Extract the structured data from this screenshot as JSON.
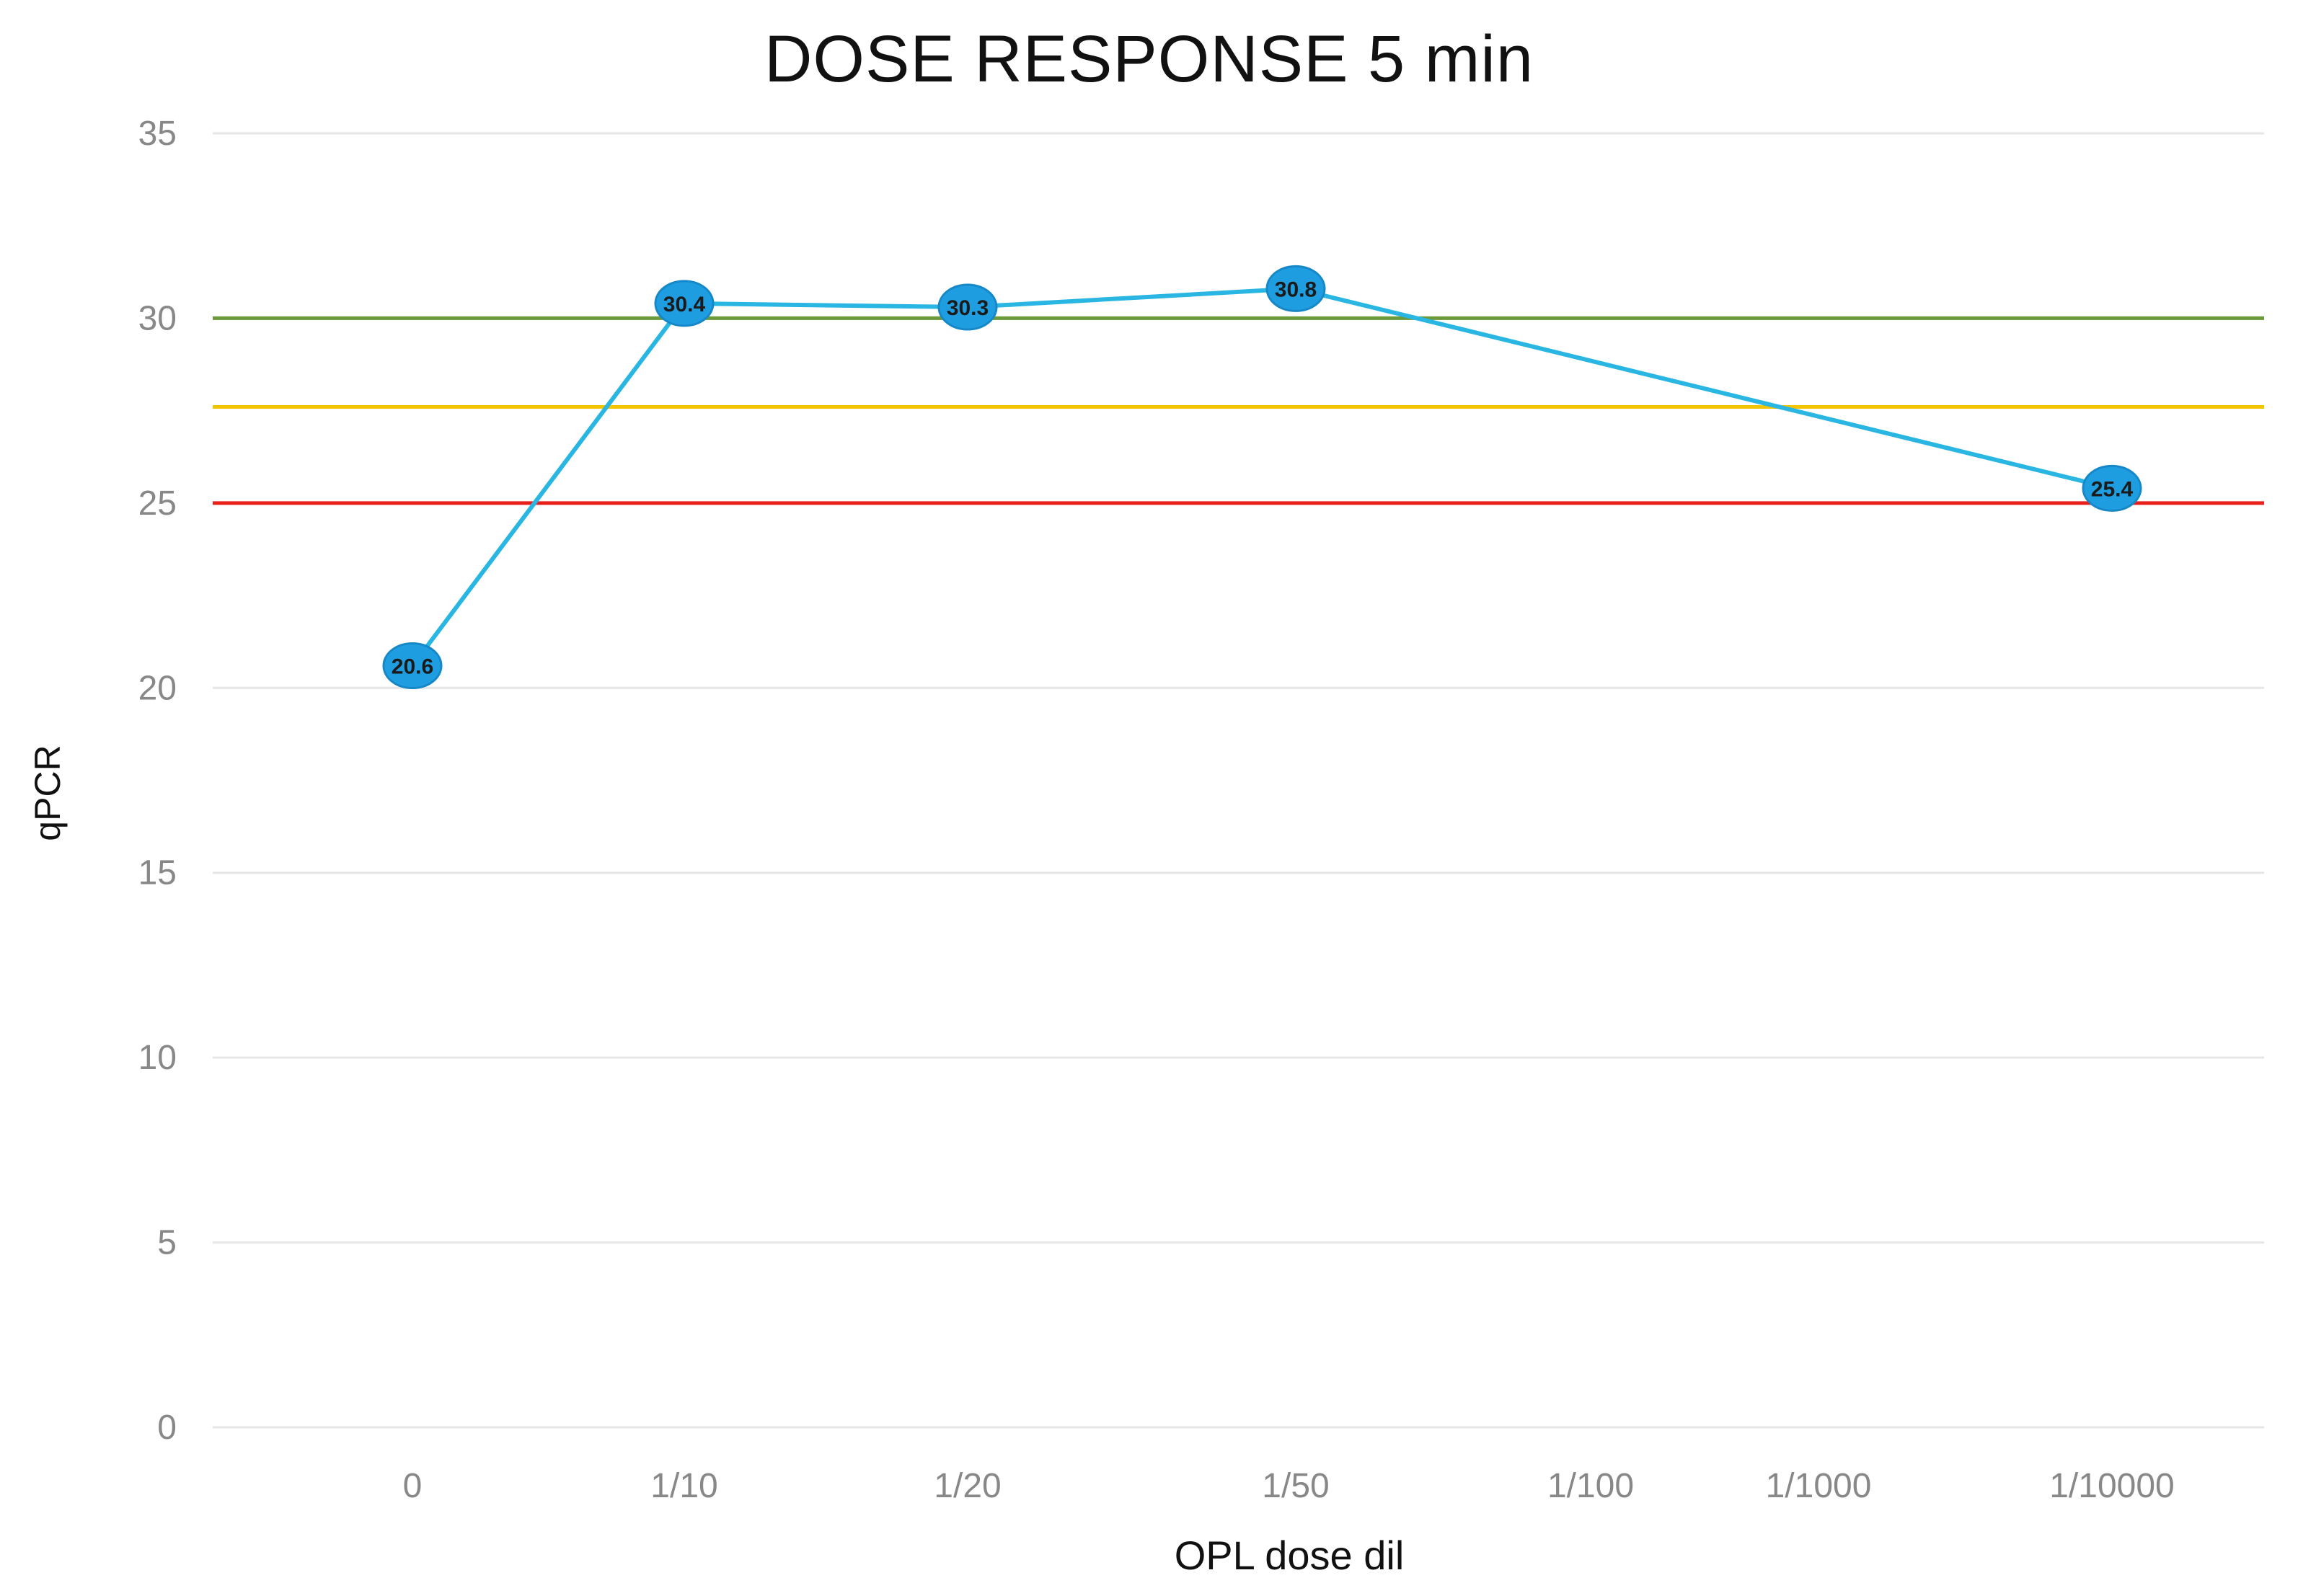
{
  "chart_data": {
    "type": "line",
    "title": "DOSE RESPONSE 5 min",
    "xlabel": "OPL dose dil",
    "ylabel": "qPCR",
    "categories": [
      "0",
      "1/10",
      "1/20",
      "1/50",
      "1/100",
      "1/1000",
      "1/10000"
    ],
    "y_ticks": [
      "0",
      "5",
      "10",
      "15",
      "20",
      "25",
      "30",
      "35"
    ],
    "ylim": [
      0,
      35
    ],
    "grid": true,
    "legend": "none",
    "series": [
      {
        "points": [
          {
            "x": "0",
            "y": 20.6,
            "label": "20.6"
          },
          {
            "x": "1/10",
            "y": 30.4,
            "label": "30.4"
          },
          {
            "x": "1/20",
            "y": 30.3,
            "label": "30.3"
          },
          {
            "x": "1/50",
            "y": 30.8,
            "label": "30.8"
          },
          {
            "x": "1/10000",
            "y": 25.4,
            "label": "25.4"
          }
        ],
        "color": "#29b6e3",
        "marker_color": "#1e9ee0"
      }
    ],
    "reference_lines": [
      {
        "y": 30,
        "color": "#6a9a3a"
      },
      {
        "y": 27.6,
        "color": "#f5c400"
      },
      {
        "y": 25,
        "color": "#e8201c"
      }
    ]
  }
}
